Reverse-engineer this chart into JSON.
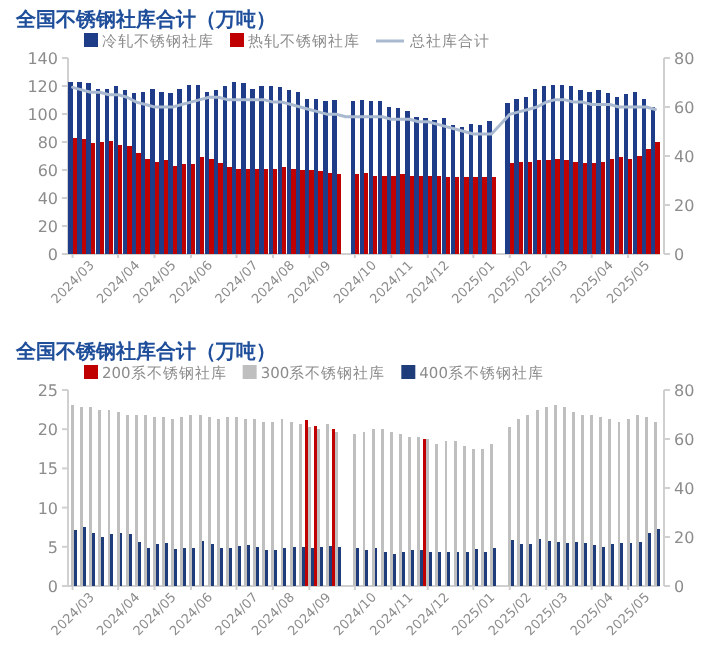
{
  "chart_data": [
    {
      "type": "bar",
      "title": "全国不锈钢社库合计（万吨）",
      "legend": "top",
      "categories": [
        "2024/03",
        null,
        null,
        null,
        null,
        "2024/04",
        null,
        null,
        null,
        "2024/05",
        null,
        null,
        null,
        "2024/06",
        null,
        null,
        null,
        null,
        "2024/07",
        null,
        null,
        null,
        "2024/08",
        null,
        null,
        null,
        "2024/09",
        null,
        null,
        null,
        null,
        "2024/10",
        null,
        null,
        null,
        "2024/11",
        null,
        null,
        null,
        "2024/12",
        null,
        null,
        null,
        null,
        "2025/01",
        null,
        null,
        null,
        "2025/02",
        null,
        null,
        null,
        "2025/03",
        null,
        null,
        null,
        null,
        "2025/04",
        null,
        null,
        null,
        "2025/05",
        null,
        null,
        null
      ],
      "series": [
        {
          "name": "冷轧不锈钢社库",
          "color": "#1f3c88",
          "values": [
            123,
            123,
            122,
            118,
            118,
            120,
            117,
            115,
            116,
            118,
            116,
            115,
            118,
            121,
            121,
            116,
            117,
            120,
            123,
            122,
            118,
            120,
            120,
            119,
            117,
            116,
            111,
            111,
            109,
            110,
            null,
            109,
            110,
            109,
            109,
            105,
            104,
            102,
            98,
            97,
            96,
            97,
            92,
            91,
            93,
            92,
            95,
            null,
            108,
            111,
            112,
            118,
            120,
            121,
            121,
            120,
            117,
            116,
            117,
            115,
            112,
            114,
            116,
            111,
            105
          ]
        },
        {
          "name": "热轧不锈钢社库",
          "color": "#c00000",
          "values": [
            83,
            82,
            79,
            80,
            81,
            78,
            77,
            72,
            68,
            66,
            67,
            63,
            64,
            64,
            69,
            68,
            65,
            62,
            61,
            61,
            61,
            61,
            61,
            62,
            61,
            60,
            60,
            59,
            58,
            57,
            null,
            57,
            58,
            56,
            56,
            56,
            57,
            56,
            56,
            56,
            56,
            55,
            55,
            55,
            55,
            55,
            55,
            null,
            65,
            66,
            66,
            67,
            67,
            68,
            67,
            66,
            65,
            65,
            66,
            68,
            69,
            68,
            70,
            75,
            80
          ]
        },
        {
          "name": "总社库合计",
          "type": "line",
          "axis": "y2",
          "color": "#a9b9d0",
          "values": [
            68,
            67,
            66,
            66,
            65,
            65,
            64,
            62,
            61,
            60,
            60,
            60,
            61,
            62,
            63,
            64,
            64,
            63,
            63,
            63,
            63,
            63,
            62,
            62,
            61,
            60,
            59,
            58,
            57,
            57,
            56,
            56,
            56,
            56,
            56,
            55,
            55,
            55,
            54,
            54,
            53,
            52,
            51,
            50,
            49,
            49,
            49,
            53,
            57,
            58,
            59,
            60,
            62,
            63,
            63,
            62,
            62,
            61,
            61,
            61,
            60,
            60,
            60,
            60,
            59
          ]
        }
      ],
      "ylim": [
        0,
        140
      ],
      "yticks": [
        0,
        20,
        40,
        60,
        80,
        100,
        120,
        140
      ],
      "y2lim": [
        0,
        80
      ],
      "y2ticks": [
        0,
        20,
        40,
        60,
        80
      ]
    },
    {
      "type": "bar",
      "title": "全国不锈钢社库合计（万吨）",
      "legend": "top",
      "categories": [
        "2024/03",
        null,
        null,
        null,
        null,
        "2024/04",
        null,
        null,
        null,
        "2024/05",
        null,
        null,
        null,
        "2024/06",
        null,
        null,
        null,
        null,
        "2024/07",
        null,
        null,
        null,
        "2024/08",
        null,
        null,
        null,
        "2024/09",
        null,
        null,
        null,
        null,
        "2024/10",
        null,
        null,
        null,
        "2024/11",
        null,
        null,
        null,
        "2024/12",
        null,
        null,
        null,
        null,
        "2025/01",
        null,
        null,
        null,
        "2025/02",
        null,
        null,
        null,
        "2025/03",
        null,
        null,
        null,
        null,
        "2025/04",
        null,
        null,
        null,
        "2025/05",
        null,
        null,
        null
      ],
      "series": [
        {
          "name": "200系不锈钢社库",
          "color": "#c00000",
          "values": [
            null,
            null,
            null,
            null,
            null,
            null,
            null,
            null,
            null,
            null,
            null,
            null,
            null,
            null,
            null,
            null,
            null,
            null,
            null,
            null,
            null,
            null,
            null,
            null,
            null,
            null,
            21.2,
            20.4,
            null,
            20.0,
            null,
            null,
            null,
            null,
            null,
            null,
            null,
            null,
            null,
            18.7,
            null,
            null,
            null,
            null,
            null,
            null,
            null,
            null,
            null,
            null,
            null,
            null,
            null,
            null,
            null,
            null,
            null,
            null,
            null,
            null,
            null,
            null,
            null,
            null,
            null
          ]
        },
        {
          "name": "300系不锈钢社库",
          "color": "#bfbfbf",
          "axis": "y2",
          "values": [
            74,
            73,
            73,
            72,
            72,
            71,
            70,
            70,
            70,
            69,
            69,
            68,
            69,
            70,
            70,
            69,
            68,
            69,
            69,
            68,
            68,
            67,
            67,
            68,
            67,
            66,
            65,
            64,
            66,
            63,
            null,
            62,
            63,
            64,
            64,
            63,
            62,
            61,
            61,
            60,
            58,
            59,
            59,
            57,
            56,
            56,
            58,
            null,
            65,
            68,
            70,
            72,
            73,
            74,
            73,
            71,
            70,
            70,
            69,
            68,
            67,
            68,
            70,
            69,
            67
          ]
        },
        {
          "name": "400系不锈钢社库",
          "color": "#1f3d7a",
          "values": [
            7.1,
            7.5,
            6.8,
            6.3,
            6.6,
            6.8,
            6.6,
            5.6,
            4.9,
            5.3,
            5.5,
            4.7,
            4.8,
            4.8,
            5.8,
            5.4,
            4.8,
            4.9,
            5.1,
            5.2,
            5.0,
            4.6,
            4.6,
            4.9,
            5.0,
            5.0,
            4.8,
            5.0,
            5.1,
            5.0,
            null,
            4.8,
            4.6,
            4.8,
            4.3,
            4.1,
            4.4,
            4.6,
            4.6,
            4.3,
            4.4,
            4.3,
            4.4,
            4.3,
            4.7,
            4.4,
            4.8,
            null,
            5.9,
            5.3,
            5.4,
            6.0,
            5.8,
            5.6,
            5.5,
            5.6,
            5.5,
            5.2,
            5.0,
            5.3,
            5.5,
            5.5,
            5.6,
            6.8,
            7.3
          ]
        }
      ],
      "ylim": [
        0,
        25
      ],
      "yticks": [
        0,
        5,
        10,
        15,
        20,
        25
      ],
      "y2lim": [
        0,
        80
      ],
      "y2ticks": [
        0,
        20,
        40,
        60,
        80
      ]
    }
  ]
}
